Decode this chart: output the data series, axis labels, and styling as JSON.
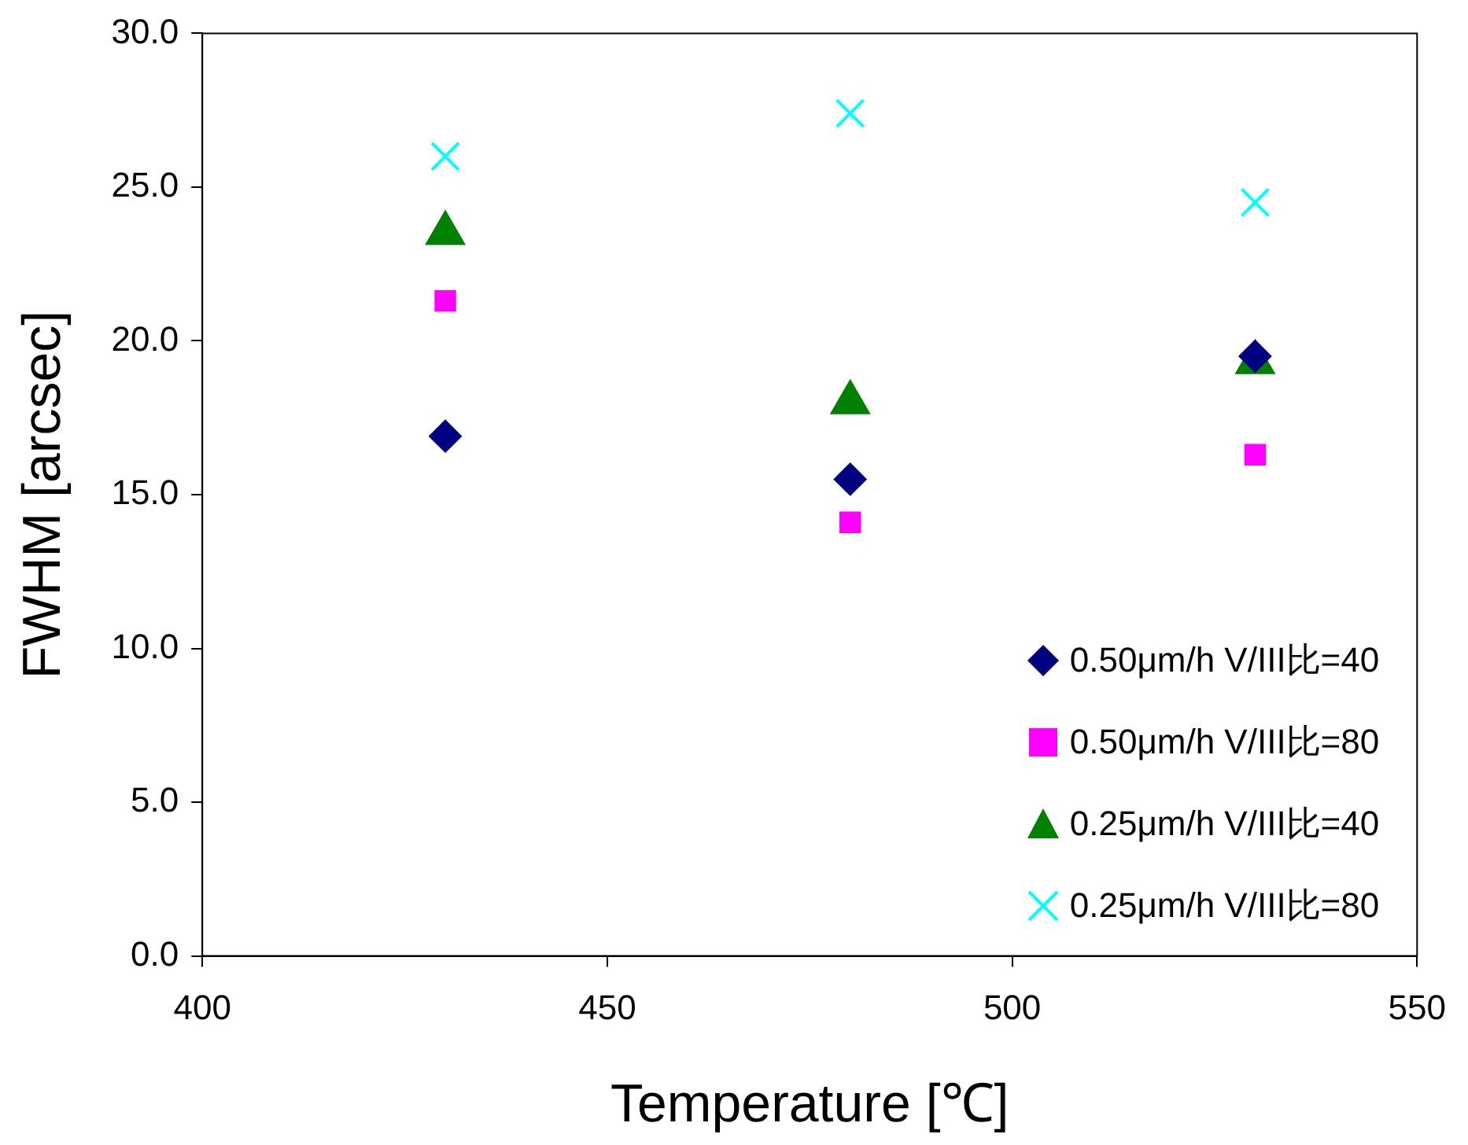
{
  "chart_data": {
    "type": "scatter",
    "xlabel": "Temperature [℃]",
    "ylabel": "FWHM [arcsec]",
    "x": [
      430,
      480,
      530
    ],
    "xlim": [
      400,
      550
    ],
    "xticks": [
      400,
      450,
      500,
      550
    ],
    "ylim": [
      0,
      30
    ],
    "yticks": [
      {
        "value": 0,
        "label": "0.0"
      },
      {
        "value": 5,
        "label": "5.0"
      },
      {
        "value": 10,
        "label": "10.0"
      },
      {
        "value": 15,
        "label": "15.0"
      },
      {
        "value": 20,
        "label": "20.0"
      },
      {
        "value": 25,
        "label": "25.0"
      },
      {
        "value": 30,
        "label": "30.0"
      }
    ],
    "grid": false,
    "legend": "bottom right",
    "series": [
      {
        "name": "0.50μm/h V/III比=40",
        "color": "#000080",
        "marker": "diamond",
        "values": [
          16.9,
          15.5,
          19.5
        ]
      },
      {
        "name": "0.50μm/h V/III比=80",
        "color": "#ff00ff",
        "marker": "square",
        "values": [
          21.3,
          14.1,
          16.3
        ]
      },
      {
        "name": "0.25μm/h V/III比=40",
        "color": "#008000",
        "marker": "triangle",
        "values": [
          23.5,
          18.0,
          19.3
        ]
      },
      {
        "name": "0.25μm/h V/III比=80",
        "color": "#00ffff",
        "marker": "cross",
        "values": [
          26.0,
          27.4,
          24.5
        ]
      }
    ]
  }
}
